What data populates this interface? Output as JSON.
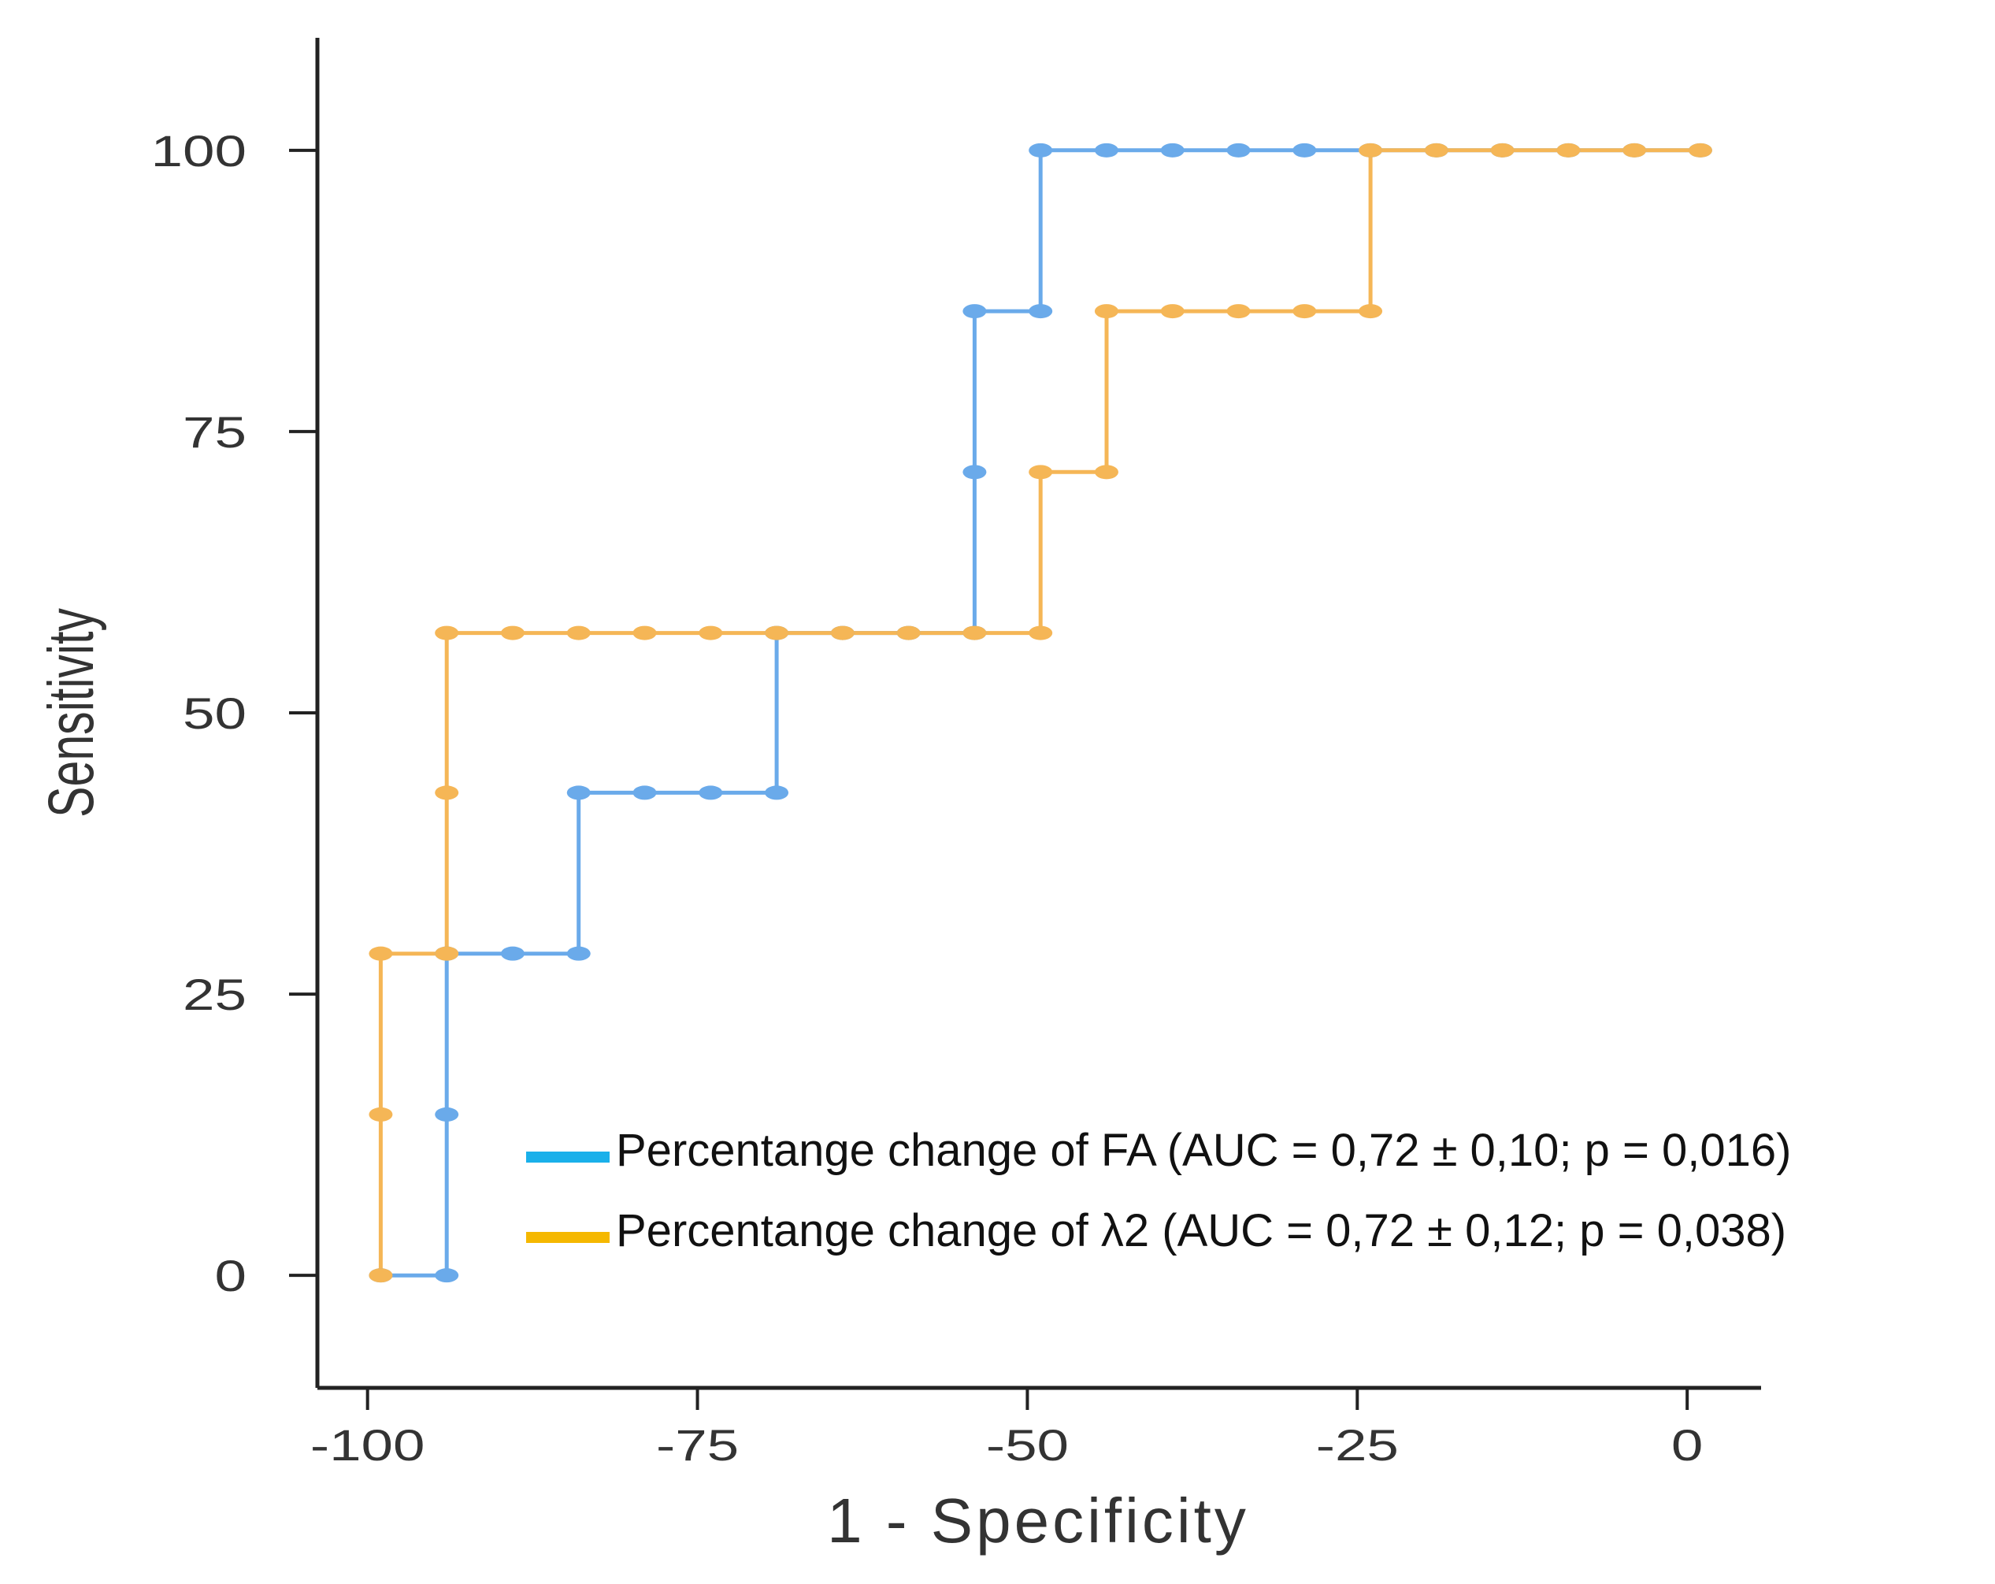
{
  "chart_data": {
    "type": "line",
    "title": "",
    "xlabel": "1 - Specificity",
    "ylabel": "Sensitivity",
    "xlim": [
      -103.8,
      5.6
    ],
    "ylim": [
      -10,
      110
    ],
    "xticks": [
      -100,
      -75,
      -50,
      -25,
      0
    ],
    "yticks": [
      0,
      25,
      50,
      75,
      100
    ],
    "xtick_labels": [
      "-100",
      "-75",
      "-50",
      "-25",
      "0"
    ],
    "ytick_labels": [
      "0",
      "25",
      "50",
      "75",
      "100"
    ],
    "grid": false,
    "legend_position": "bottom-right",
    "series": [
      {
        "name": "Percentange change of FA (AUC = 0,72 ± 0,10; p = 0,016)",
        "color": "#6aaaea",
        "legend_color": "#1ab0ea",
        "x": [
          -99,
          -94,
          -94,
          -94,
          -89,
          -84,
          -84,
          -79,
          -74,
          -69,
          -69,
          -64,
          -59,
          -54,
          -54,
          -54,
          -49,
          -49,
          -44,
          -39,
          -34,
          -29,
          -24,
          -19,
          -14,
          -9,
          -4,
          1
        ],
        "y": [
          0,
          0,
          14.3,
          28.6,
          28.6,
          28.6,
          42.9,
          42.9,
          42.9,
          42.9,
          57.1,
          57.1,
          57.1,
          57.1,
          71.4,
          85.7,
          85.7,
          100,
          100,
          100,
          100,
          100,
          100,
          100,
          100,
          100,
          100,
          100
        ]
      },
      {
        "name": "Percentange change of λ2 (AUC = 0,72 ± 0,12; p = 0,038)",
        "color": "#f5b656",
        "legend_color": "#f5b800",
        "x": [
          -99,
          -99,
          -99,
          -94,
          -94,
          -94,
          -89,
          -84,
          -79,
          -74,
          -69,
          -64,
          -59,
          -54,
          -49,
          -49,
          -44,
          -44,
          -39,
          -34,
          -29,
          -24,
          -24,
          -19,
          -14,
          -9,
          -4,
          1
        ],
        "y": [
          0,
          14.3,
          28.6,
          28.6,
          42.9,
          57.1,
          57.1,
          57.1,
          57.1,
          57.1,
          57.1,
          57.1,
          57.1,
          57.1,
          57.1,
          71.4,
          71.4,
          85.7,
          85.7,
          85.7,
          85.7,
          85.7,
          100,
          100,
          100,
          100,
          100,
          100
        ]
      }
    ]
  }
}
